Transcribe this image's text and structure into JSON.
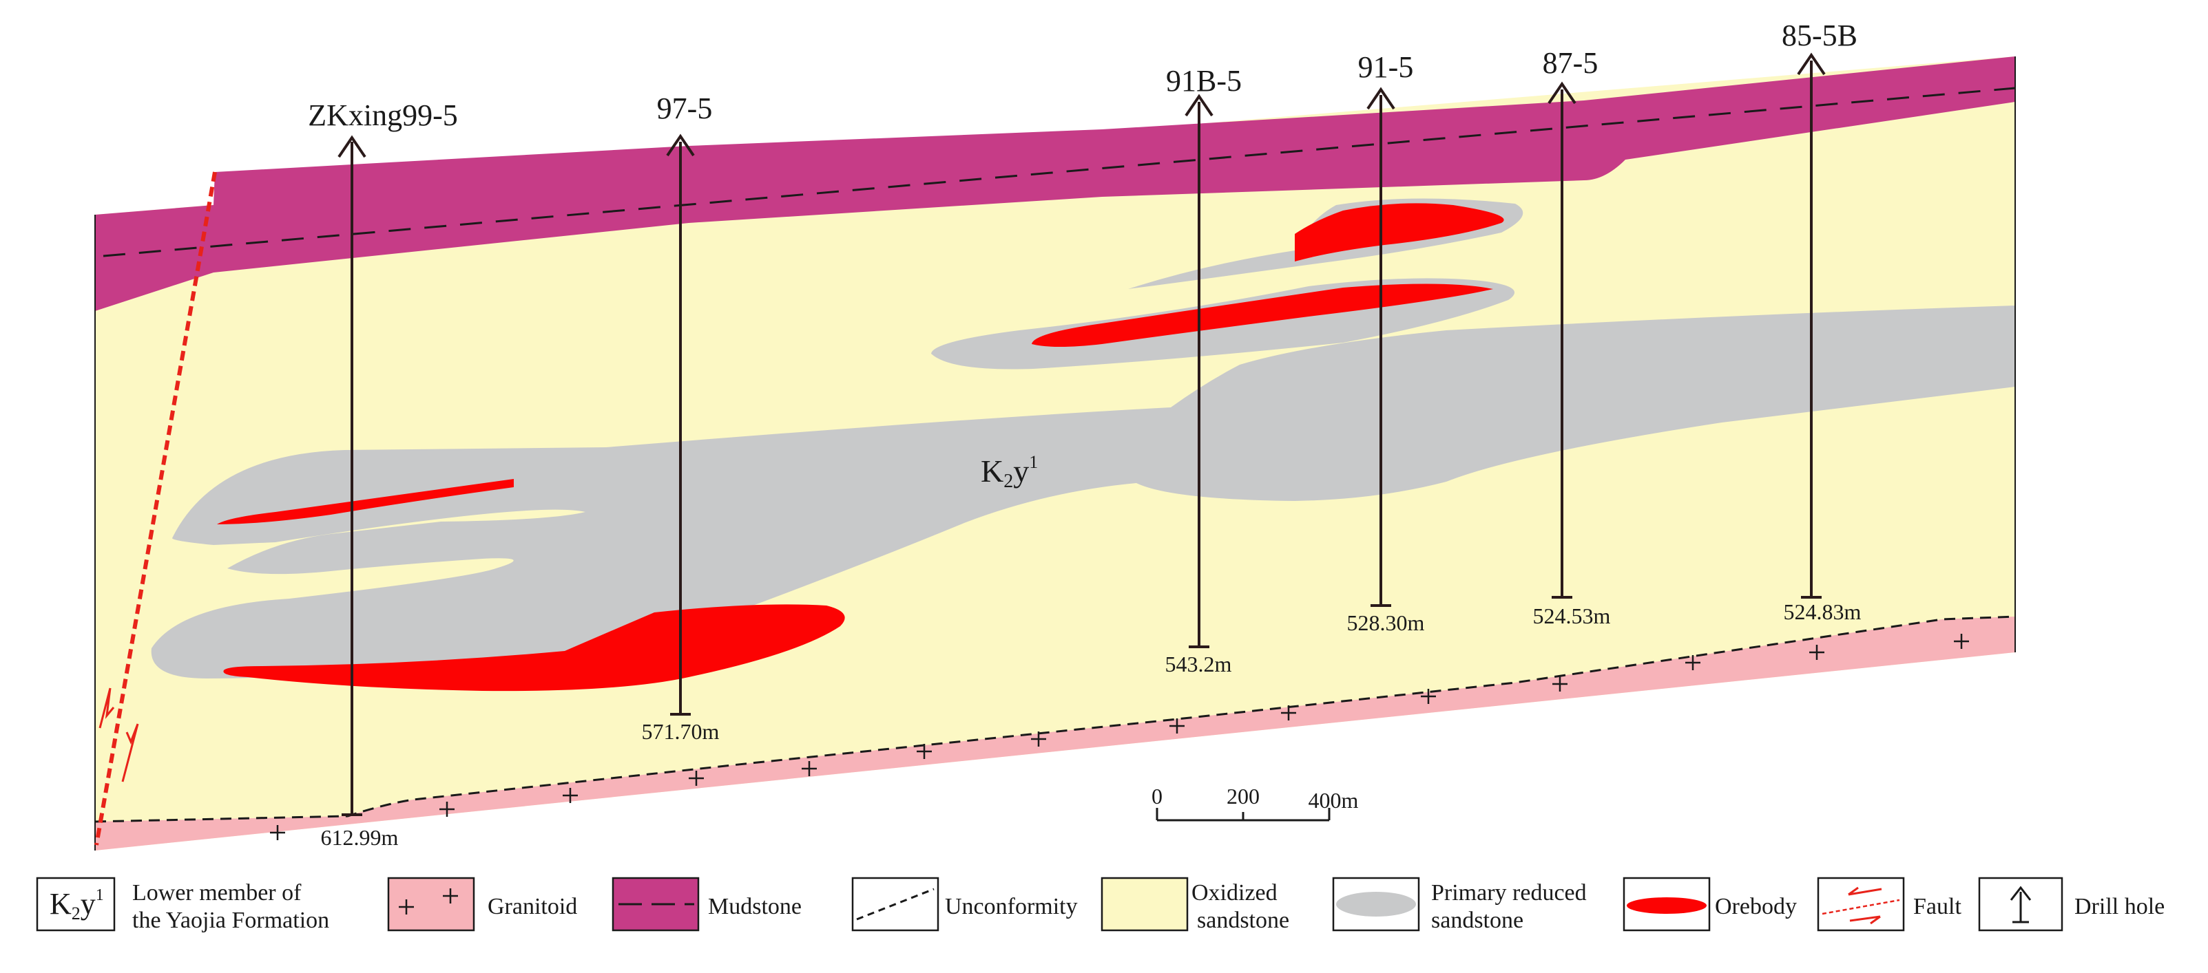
{
  "formation_label": {
    "main": "K",
    "sub": "2",
    "tail": "y",
    "sup": "1"
  },
  "drill_holes": [
    {
      "id": "ZKxing99-5",
      "depth": "612.99m"
    },
    {
      "id": "97-5",
      "depth": "571.70m"
    },
    {
      "id": "91B-5",
      "depth": "543.2m"
    },
    {
      "id": "91-5",
      "depth": "528.30m"
    },
    {
      "id": "87-5",
      "depth": "524.53m"
    },
    {
      "id": "85-5B",
      "depth": "524.83m"
    }
  ],
  "scale_bar": {
    "ticks": [
      "0",
      "200",
      "400m"
    ]
  },
  "legend": {
    "formation": {
      "line1": "Lower member of",
      "line2": "the Yaojia Formation"
    },
    "granitoid": "Granitoid",
    "mudstone": "Mudstone",
    "unconformity": "Unconformity",
    "oxidized": {
      "line1": "Oxidized",
      "line2": "sandstone"
    },
    "primary": {
      "line1": "Primary reduced",
      "line2": "sandstone"
    },
    "orebody": "Orebody",
    "fault": "Fault",
    "drill_hole": "Drill hole"
  },
  "colors": {
    "mudstone": "#c63c87",
    "oxidized": "#fcf8c4",
    "granitoid": "#f7b3b9",
    "primary": "#c8c9ca",
    "orebody": "#fc0303",
    "fault": "#e8231a"
  }
}
